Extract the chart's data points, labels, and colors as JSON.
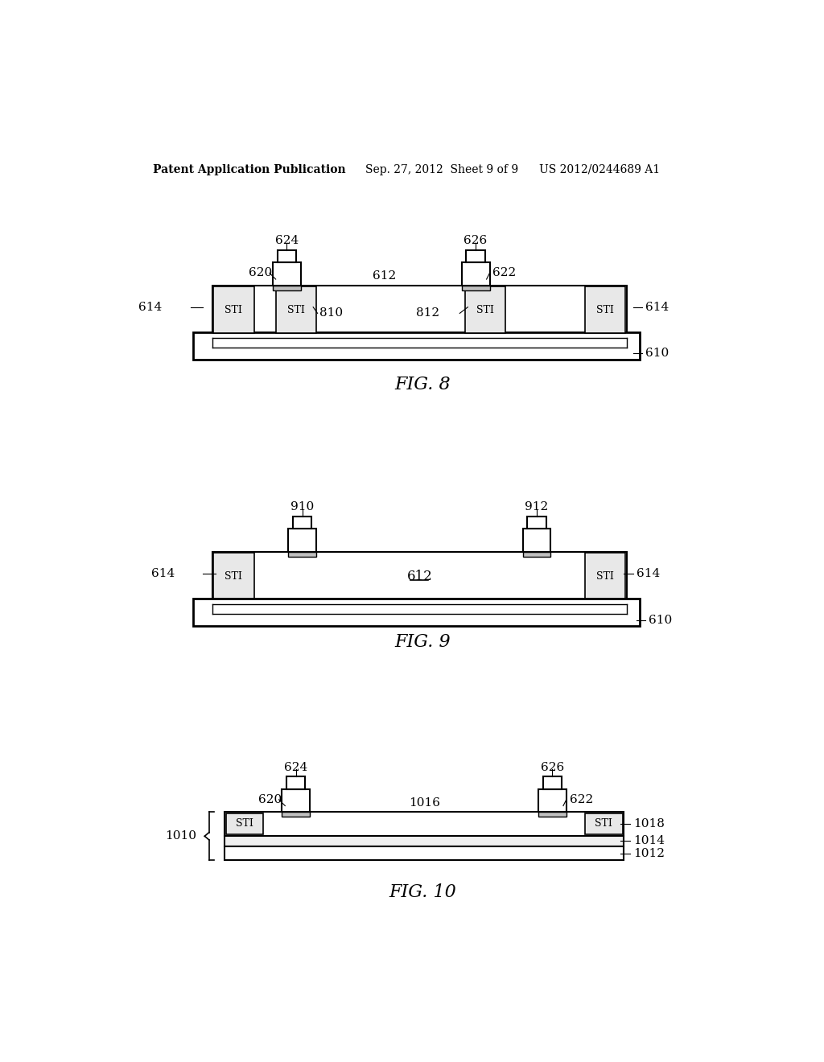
{
  "bg_color": "#ffffff",
  "header_left": "Patent Application Publication",
  "header_center": "Sep. 27, 2012  Sheet 9 of 9",
  "header_right": "US 2012/0244689 A1",
  "fig8_label": "FIG. 8",
  "fig9_label": "FIG. 9",
  "fig10_label": "FIG. 10"
}
